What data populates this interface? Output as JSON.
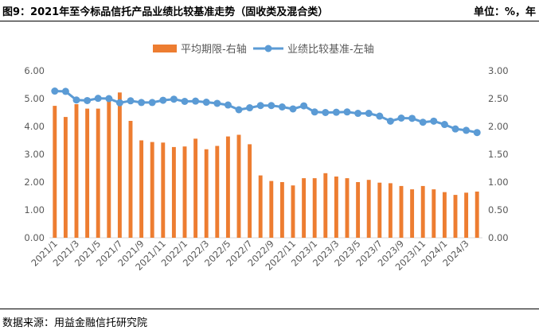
{
  "header": {
    "title": "图9：2021年至今标品信托产品业绩比较基准走势（固收类及混合类）",
    "unit": "单位：%，年"
  },
  "footer": {
    "source": "数据来源：用益金融信托研究院"
  },
  "colors": {
    "bar": "#ED7D31",
    "line": "#5B9BD5",
    "axis": "#D9D9D9",
    "text": "#595959"
  },
  "chart_data": {
    "type": "bar+line",
    "x": [
      "2021/1",
      "2021/2",
      "2021/3",
      "2021/4",
      "2021/5",
      "2021/6",
      "2021/7",
      "2021/8",
      "2021/9",
      "2021/10",
      "2021/11",
      "2021/12",
      "2022/1",
      "2022/2",
      "2022/3",
      "2022/4",
      "2022/5",
      "2022/6",
      "2022/7",
      "2022/8",
      "2022/9",
      "2022/10",
      "2022/11",
      "2022/12",
      "2023/1",
      "2023/2",
      "2023/3",
      "2023/4",
      "2023/5",
      "2023/6",
      "2023/7",
      "2023/8",
      "2023/9",
      "2023/10",
      "2023/11",
      "2023/12",
      "2024/1",
      "2024/2",
      "2024/3",
      "2024/4"
    ],
    "x_tick_labels": [
      "2021/1",
      "2021/3",
      "2021/5",
      "2021/7",
      "2021/9",
      "2021/11",
      "2022/1",
      "2022/3",
      "2022/5",
      "2022/7",
      "2022/9",
      "2022/11",
      "2023/1",
      "2023/3",
      "2023/5",
      "2023/7",
      "2023/9",
      "2023/11",
      "2024/1",
      "2024/3"
    ],
    "series": [
      {
        "name": "平均期限-右轴",
        "type": "bar",
        "axis": "right",
        "values": [
          2.37,
          2.17,
          2.4,
          2.32,
          2.32,
          2.5,
          2.61,
          2.1,
          1.75,
          1.72,
          1.71,
          1.63,
          1.64,
          1.78,
          1.59,
          1.65,
          1.82,
          1.85,
          1.68,
          1.12,
          1.02,
          1.0,
          0.94,
          1.07,
          1.07,
          1.16,
          1.1,
          1.07,
          1.0,
          1.04,
          0.99,
          0.98,
          0.93,
          0.87,
          0.93,
          0.87,
          0.82,
          0.77,
          0.81,
          0.83
        ]
      },
      {
        "name": "业绩比较基准-左轴",
        "type": "line",
        "axis": "left",
        "values": [
          5.27,
          5.26,
          4.95,
          4.93,
          5.01,
          5.0,
          4.85,
          4.92,
          4.86,
          4.86,
          4.94,
          4.98,
          4.9,
          4.91,
          4.87,
          4.83,
          4.77,
          4.6,
          4.67,
          4.75,
          4.75,
          4.7,
          4.63,
          4.74,
          4.52,
          4.5,
          4.51,
          4.52,
          4.47,
          4.47,
          4.37,
          4.19,
          4.3,
          4.29,
          4.15,
          4.19,
          4.07,
          3.91,
          3.86,
          3.78
        ]
      }
    ],
    "y_left": {
      "lim": [
        0,
        6
      ],
      "ticks": [
        "0.00",
        "1.00",
        "2.00",
        "3.00",
        "4.00",
        "5.00",
        "6.00"
      ]
    },
    "y_right": {
      "lim": [
        0,
        3
      ],
      "ticks": [
        "0.00",
        "0.50",
        "1.00",
        "1.50",
        "2.00",
        "2.50",
        "3.00"
      ]
    },
    "legend_position": "top-center",
    "grid": false
  }
}
